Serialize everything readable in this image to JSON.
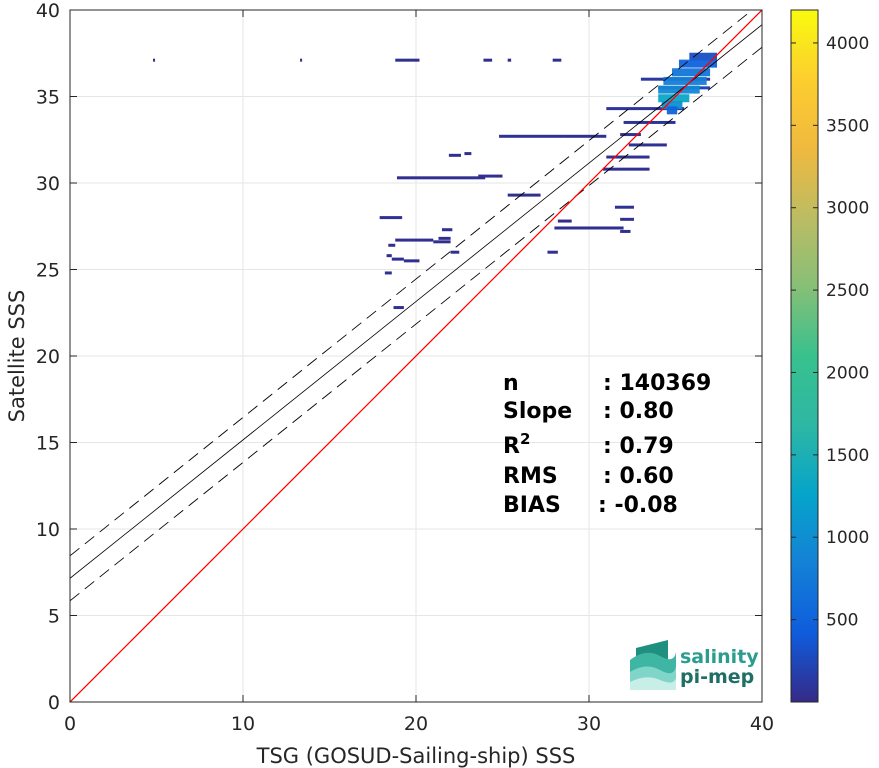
{
  "chart_data": {
    "type": "heatmap",
    "xlabel": "TSG (GOSUD-Sailing-ship) SSS",
    "ylabel": "Satellite SSS",
    "xlim": [
      0,
      40
    ],
    "ylim": [
      0,
      40
    ],
    "xticks": [
      "0",
      "10",
      "20",
      "30",
      "40"
    ],
    "yticks": [
      "0",
      "5",
      "10",
      "15",
      "20",
      "25",
      "30",
      "35",
      "40"
    ],
    "grid": true,
    "colorbar": {
      "range": [
        0,
        4200
      ],
      "ticks": [
        "500",
        "1000",
        "1500",
        "2000",
        "2500",
        "3000",
        "3500",
        "4000"
      ],
      "colormap": "parula"
    },
    "lines": {
      "identity": {
        "slope": 1.0,
        "intercept": 0.0,
        "color": "#ff0000"
      },
      "regression": {
        "slope": 0.8,
        "intercept": 7.15,
        "color": "#000000"
      },
      "upper_bound": {
        "slope": 0.8,
        "intercept": 8.45,
        "dash": true
      },
      "lower_bound": {
        "slope": 0.8,
        "intercept": 5.85,
        "dash": true
      }
    },
    "stats": [
      {
        "label": "n",
        "value": ": 140369"
      },
      {
        "label": "Slope",
        "value": ": 0.80"
      },
      {
        "label": "R",
        "sup": "2",
        "value": ": 0.79"
      },
      {
        "label": "RMS",
        "value": ": 0.60"
      },
      {
        "label": "BIAS",
        "value": ": -0.08"
      }
    ],
    "density_segments": [
      {
        "x0": 4.8,
        "x1": 4.9,
        "y": 37.1,
        "count": 20
      },
      {
        "x0": 13.3,
        "x1": 13.4,
        "y": 37.1,
        "count": 20
      },
      {
        "x0": 18.8,
        "x1": 20.2,
        "y": 37.1,
        "count": 40
      },
      {
        "x0": 23.9,
        "x1": 24.4,
        "y": 37.1,
        "count": 30
      },
      {
        "x0": 25.3,
        "x1": 25.5,
        "y": 37.1,
        "count": 20
      },
      {
        "x0": 27.9,
        "x1": 28.4,
        "y": 37.1,
        "count": 30
      },
      {
        "x0": 33.0,
        "x1": 37.0,
        "y": 36.0,
        "count": 120
      },
      {
        "x0": 34.0,
        "x1": 37.0,
        "y": 35.5,
        "count": 250
      },
      {
        "x0": 31.0,
        "x1": 35.5,
        "y": 34.3,
        "count": 90
      },
      {
        "x0": 32.0,
        "x1": 35.0,
        "y": 33.5,
        "count": 80
      },
      {
        "x0": 24.8,
        "x1": 28.5,
        "y": 32.7,
        "count": 70
      },
      {
        "x0": 28.5,
        "x1": 31.0,
        "y": 32.7,
        "count": 50
      },
      {
        "x0": 31.8,
        "x1": 33.0,
        "y": 32.8,
        "count": 60
      },
      {
        "x0": 32.3,
        "x1": 34.5,
        "y": 32.2,
        "count": 70
      },
      {
        "x0": 21.9,
        "x1": 22.6,
        "y": 31.6,
        "count": 40
      },
      {
        "x0": 22.8,
        "x1": 23.2,
        "y": 31.7,
        "count": 40
      },
      {
        "x0": 31.0,
        "x1": 33.5,
        "y": 31.5,
        "count": 60
      },
      {
        "x0": 30.8,
        "x1": 33.5,
        "y": 30.8,
        "count": 60
      },
      {
        "x0": 18.9,
        "x1": 24.0,
        "y": 30.3,
        "count": 50
      },
      {
        "x0": 23.6,
        "x1": 25.0,
        "y": 30.4,
        "count": 50
      },
      {
        "x0": 25.3,
        "x1": 27.2,
        "y": 29.3,
        "count": 40
      },
      {
        "x0": 31.5,
        "x1": 32.6,
        "y": 28.6,
        "count": 50
      },
      {
        "x0": 17.9,
        "x1": 19.2,
        "y": 28.0,
        "count": 60
      },
      {
        "x0": 31.8,
        "x1": 32.6,
        "y": 27.9,
        "count": 40
      },
      {
        "x0": 31.8,
        "x1": 32.4,
        "y": 27.2,
        "count": 40
      },
      {
        "x0": 28.2,
        "x1": 29.0,
        "y": 27.8,
        "count": 30
      },
      {
        "x0": 28.0,
        "x1": 32.0,
        "y": 27.4,
        "count": 40
      },
      {
        "x0": 21.5,
        "x1": 22.1,
        "y": 27.3,
        "count": 40
      },
      {
        "x0": 21.3,
        "x1": 22.0,
        "y": 26.8,
        "count": 40
      },
      {
        "x0": 18.8,
        "x1": 21.0,
        "y": 26.7,
        "count": 40
      },
      {
        "x0": 21.0,
        "x1": 22.0,
        "y": 26.6,
        "count": 40
      },
      {
        "x0": 18.4,
        "x1": 18.8,
        "y": 26.4,
        "count": 40
      },
      {
        "x0": 18.3,
        "x1": 18.6,
        "y": 25.8,
        "count": 40
      },
      {
        "x0": 22.0,
        "x1": 22.5,
        "y": 26.0,
        "count": 40
      },
      {
        "x0": 27.6,
        "x1": 28.2,
        "y": 26.0,
        "count": 40
      },
      {
        "x0": 18.6,
        "x1": 19.3,
        "y": 25.6,
        "count": 40
      },
      {
        "x0": 19.3,
        "x1": 20.2,
        "y": 25.5,
        "count": 40
      },
      {
        "x0": 18.2,
        "x1": 18.6,
        "y": 24.8,
        "count": 40
      },
      {
        "x0": 18.7,
        "x1": 19.3,
        "y": 22.8,
        "count": 40
      }
    ],
    "density_core": [
      {
        "x0": 35.8,
        "x1": 37.4,
        "y": 37.3,
        "count": 300
      },
      {
        "x0": 35.2,
        "x1": 37.4,
        "y": 36.9,
        "count": 500
      },
      {
        "x0": 34.8,
        "x1": 37.0,
        "y": 36.4,
        "count": 700
      },
      {
        "x0": 34.3,
        "x1": 36.8,
        "y": 35.9,
        "count": 800
      },
      {
        "x0": 34.0,
        "x1": 36.4,
        "y": 35.4,
        "count": 900
      },
      {
        "x0": 34.0,
        "x1": 35.8,
        "y": 34.9,
        "count": 1300
      },
      {
        "x0": 34.2,
        "x1": 35.4,
        "y": 34.5,
        "count": 1000
      },
      {
        "x0": 34.5,
        "x1": 35.1,
        "y": 34.2,
        "count": 500
      }
    ]
  }
}
